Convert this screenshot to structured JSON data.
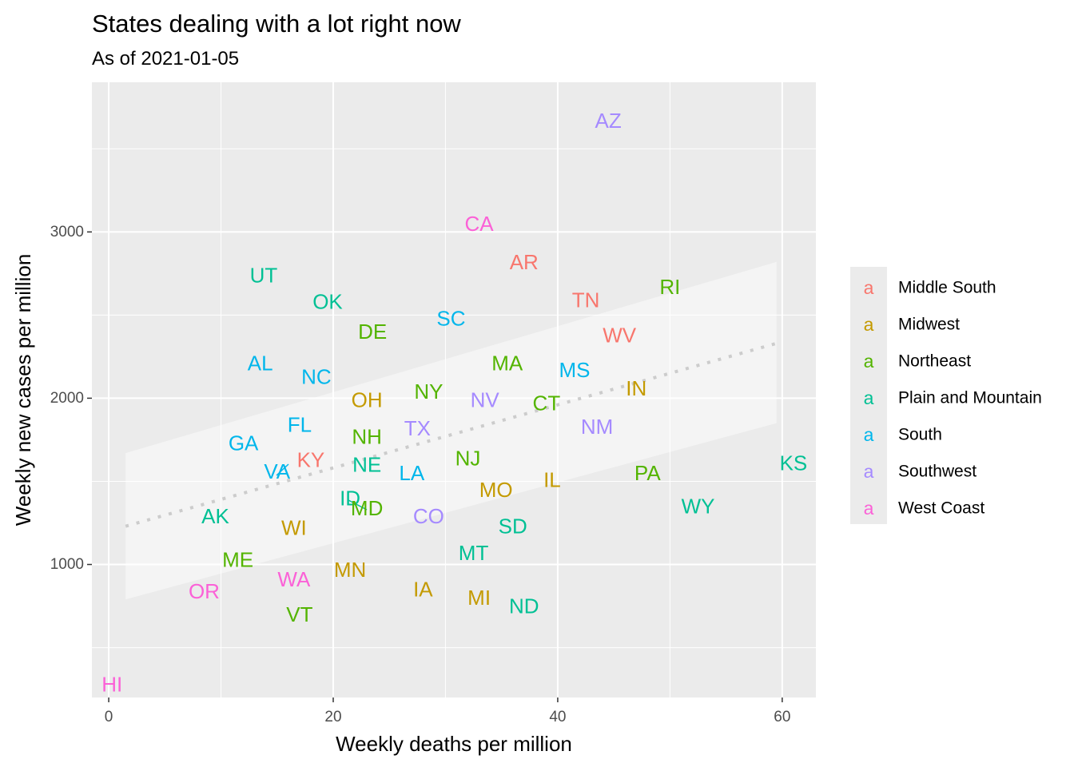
{
  "chart_data": {
    "type": "scatter",
    "title": "States dealing with a lot right now",
    "subtitle": "As of 2021-01-05",
    "xlabel": "Weekly deaths per million",
    "ylabel": "Weekly new cases per million",
    "xlim": [
      -1.5,
      63
    ],
    "ylim": [
      200,
      3900
    ],
    "x_ticks": [
      0,
      20,
      40,
      60
    ],
    "x_tick_labels": [
      "0",
      "20",
      "40",
      "60"
    ],
    "y_ticks": [
      1000,
      2000,
      3000
    ],
    "y_tick_labels": [
      "1000",
      "2000",
      "3000"
    ],
    "grid": true,
    "legend_position": "right",
    "legend_key_glyph": "a",
    "groups": [
      {
        "name": "Middle South",
        "color": "#F8766D"
      },
      {
        "name": "Midwest",
        "color": "#C49A00"
      },
      {
        "name": "Northeast",
        "color": "#53B400"
      },
      {
        "name": "Plain and Mountain",
        "color": "#00C094"
      },
      {
        "name": "South",
        "color": "#00B6EB"
      },
      {
        "name": "Southwest",
        "color": "#A58AFF"
      },
      {
        "name": "West Coast",
        "color": "#FB61D7"
      }
    ],
    "trend": {
      "type": "linear",
      "style": "dotted",
      "x": [
        1.5,
        59.5
      ],
      "y": [
        1230,
        2330
      ],
      "ci_lower": [
        790,
        1850
      ],
      "ci_upper": [
        1670,
        2820
      ]
    },
    "points": [
      {
        "label": "AZ",
        "x": 44.5,
        "y": 3670,
        "group": "Southwest"
      },
      {
        "label": "CA",
        "x": 33.0,
        "y": 3050,
        "group": "West Coast"
      },
      {
        "label": "AR",
        "x": 37.0,
        "y": 2820,
        "group": "Middle South"
      },
      {
        "label": "UT",
        "x": 13.8,
        "y": 2740,
        "group": "Plain and Mountain"
      },
      {
        "label": "RI",
        "x": 50.0,
        "y": 2670,
        "group": "Northeast"
      },
      {
        "label": "OK",
        "x": 19.5,
        "y": 2580,
        "group": "Plain and Mountain"
      },
      {
        "label": "TN",
        "x": 42.5,
        "y": 2590,
        "group": "Middle South"
      },
      {
        "label": "SC",
        "x": 30.5,
        "y": 2480,
        "group": "South"
      },
      {
        "label": "DE",
        "x": 23.5,
        "y": 2400,
        "group": "Northeast"
      },
      {
        "label": "WV",
        "x": 45.5,
        "y": 2380,
        "group": "Middle South"
      },
      {
        "label": "AL",
        "x": 13.5,
        "y": 2210,
        "group": "South"
      },
      {
        "label": "MA",
        "x": 35.5,
        "y": 2210,
        "group": "Northeast"
      },
      {
        "label": "MS",
        "x": 41.5,
        "y": 2170,
        "group": "South"
      },
      {
        "label": "NC",
        "x": 18.5,
        "y": 2130,
        "group": "South"
      },
      {
        "label": "IN",
        "x": 47.0,
        "y": 2060,
        "group": "Midwest"
      },
      {
        "label": "NY",
        "x": 28.5,
        "y": 2040,
        "group": "Northeast"
      },
      {
        "label": "OH",
        "x": 23.0,
        "y": 1990,
        "group": "Midwest"
      },
      {
        "label": "NV",
        "x": 33.5,
        "y": 1990,
        "group": "Southwest"
      },
      {
        "label": "CT",
        "x": 39.0,
        "y": 1970,
        "group": "Northeast"
      },
      {
        "label": "FL",
        "x": 17.0,
        "y": 1840,
        "group": "South"
      },
      {
        "label": "NM",
        "x": 43.5,
        "y": 1830,
        "group": "Southwest"
      },
      {
        "label": "TX",
        "x": 27.5,
        "y": 1820,
        "group": "Southwest"
      },
      {
        "label": "NH",
        "x": 23.0,
        "y": 1770,
        "group": "Northeast"
      },
      {
        "label": "GA",
        "x": 12.0,
        "y": 1730,
        "group": "South"
      },
      {
        "label": "KY",
        "x": 18.0,
        "y": 1630,
        "group": "Middle South"
      },
      {
        "label": "NJ",
        "x": 32.0,
        "y": 1640,
        "group": "Northeast"
      },
      {
        "label": "KS",
        "x": 61.0,
        "y": 1610,
        "group": "Plain and Mountain"
      },
      {
        "label": "NE",
        "x": 23.0,
        "y": 1600,
        "group": "Plain and Mountain"
      },
      {
        "label": "LA",
        "x": 27.0,
        "y": 1550,
        "group": "South"
      },
      {
        "label": "PA",
        "x": 48.0,
        "y": 1550,
        "group": "Northeast"
      },
      {
        "label": "IL",
        "x": 39.5,
        "y": 1510,
        "group": "Midwest"
      },
      {
        "label": "VA",
        "x": 15.0,
        "y": 1560,
        "group": "South"
      },
      {
        "label": "MO",
        "x": 34.5,
        "y": 1450,
        "group": "Midwest"
      },
      {
        "label": "ID",
        "x": 21.5,
        "y": 1400,
        "group": "Plain and Mountain"
      },
      {
        "label": "WY",
        "x": 52.5,
        "y": 1350,
        "group": "Plain and Mountain"
      },
      {
        "label": "AK",
        "x": 9.5,
        "y": 1290,
        "group": "Plain and Mountain"
      },
      {
        "label": "CO",
        "x": 28.5,
        "y": 1290,
        "group": "Southwest"
      },
      {
        "label": "MD",
        "x": 23.0,
        "y": 1340,
        "group": "Northeast"
      },
      {
        "label": "WI",
        "x": 16.5,
        "y": 1220,
        "group": "Midwest"
      },
      {
        "label": "SD",
        "x": 36.0,
        "y": 1230,
        "group": "Plain and Mountain"
      },
      {
        "label": "MT",
        "x": 32.5,
        "y": 1070,
        "group": "Plain and Mountain"
      },
      {
        "label": "ME",
        "x": 11.5,
        "y": 1030,
        "group": "Northeast"
      },
      {
        "label": "MN",
        "x": 21.5,
        "y": 970,
        "group": "Midwest"
      },
      {
        "label": "WA",
        "x": 16.5,
        "y": 910,
        "group": "West Coast"
      },
      {
        "label": "OR",
        "x": 8.5,
        "y": 840,
        "group": "West Coast"
      },
      {
        "label": "IA",
        "x": 28.0,
        "y": 850,
        "group": "Midwest"
      },
      {
        "label": "MI",
        "x": 33.0,
        "y": 800,
        "group": "Midwest"
      },
      {
        "label": "ND",
        "x": 37.0,
        "y": 750,
        "group": "Plain and Mountain"
      },
      {
        "label": "VT",
        "x": 17.0,
        "y": 700,
        "group": "Northeast"
      },
      {
        "label": "HI",
        "x": 0.3,
        "y": 280,
        "group": "West Coast"
      }
    ]
  }
}
